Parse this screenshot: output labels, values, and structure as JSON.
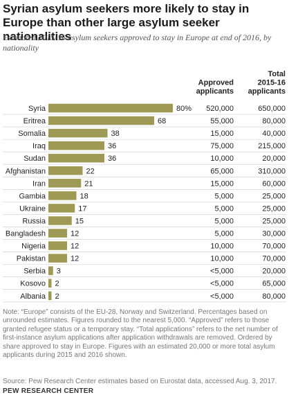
{
  "title": "Syrian asylum seekers more likely to stay in Europe than other large asylum seeker nationalities",
  "subtitle": "Estimated 2015-16 asylum seekers approved to stay in Europe at end of 2016, by nationality",
  "colors": {
    "bar": "#9e9a55",
    "text": "#222222",
    "muted": "#777777",
    "row_border": "#cccccc"
  },
  "chart_data": {
    "type": "bar",
    "orientation": "horizontal",
    "categories": [
      "Syria",
      "Eritrea",
      "Somalia",
      "Iraq",
      "Sudan",
      "Afghanistan",
      "Iran",
      "Gambia",
      "Ukraine",
      "Russia",
      "Bangladesh",
      "Nigeria",
      "Pakistan",
      "Serbia",
      "Kosovo",
      "Albania"
    ],
    "values": [
      80,
      68,
      38,
      36,
      36,
      22,
      21,
      18,
      17,
      15,
      12,
      12,
      12,
      3,
      2,
      2
    ],
    "value_labels": [
      "80%",
      "68",
      "38",
      "36",
      "36",
      "22",
      "21",
      "18",
      "17",
      "15",
      "12",
      "12",
      "12",
      "3",
      "2",
      "2"
    ],
    "xlim": [
      0,
      80
    ],
    "grid": false,
    "legend": "none",
    "table_columns": [
      {
        "header": [
          "Approved",
          "applicants"
        ],
        "values": [
          "520,000",
          "55,000",
          "15,000",
          "75,000",
          "10,000",
          "65,000",
          "15,000",
          "5,000",
          "5,000",
          "5,000",
          "5,000",
          "10,000",
          "10,000",
          "<5,000",
          "<5,000",
          "<5,000"
        ]
      },
      {
        "header": [
          "Total",
          "2015-16",
          "applicants"
        ],
        "values": [
          "650,000",
          "80,000",
          "40,000",
          "215,000",
          "20,000",
          "310,000",
          "60,000",
          "25,000",
          "25,000",
          "25,000",
          "30,000",
          "70,000",
          "70,000",
          "20,000",
          "65,000",
          "80,000"
        ]
      }
    ]
  },
  "note": "Note: “Europe” consists of the EU-28, Norway and Switzerland. Percentages based on unrounded estimates. Figures rounded to the nearest 5,000. “Approved” refers to those granted refugee status or a temporary stay. “Total applications” refers to the net number of first-instance asylum applications after application withdrawals are removed. Ordered by share approved to stay in Europe. Figures with an estimated 20,000 or more total asylum applicants during 2015 and 2016 shown.",
  "source": "Source: Pew Research Center estimates based on Eurostat data, accessed Aug. 3, 2017.",
  "brand": "PEW RESEARCH CENTER"
}
